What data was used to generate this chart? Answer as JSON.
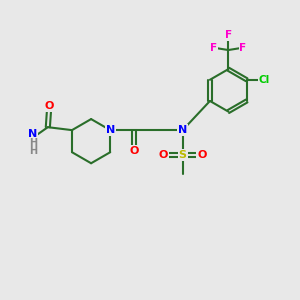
{
  "bg_color": "#e8e8e8",
  "bond_color": "#2a6e2a",
  "bond_width": 1.5,
  "atom_colors": {
    "O": "#ff0000",
    "N": "#0000ff",
    "S": "#bbbb00",
    "F": "#ff00cc",
    "Cl": "#00cc00",
    "H": "#888888",
    "C": "#2a6e2a"
  },
  "font_size": 8.0
}
